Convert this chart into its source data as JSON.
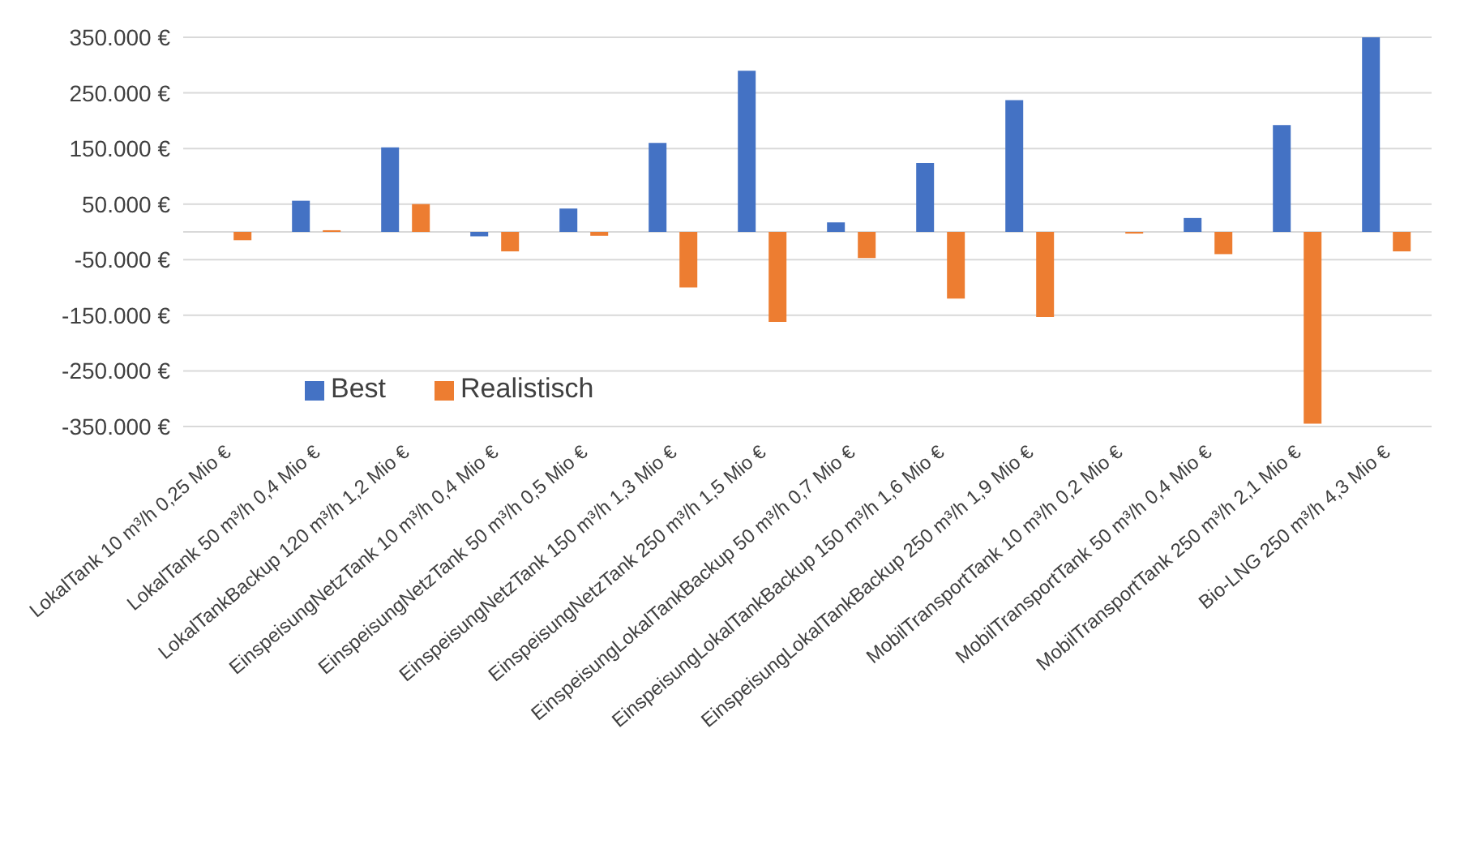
{
  "chart_data": {
    "type": "bar",
    "categories": [
      "LokalTank 10 m³/h 0,25 Mio €",
      "LokalTank 50 m³/h 0,4 Mio €",
      "LokalTankBackup 120 m³/h 1,2 Mio €",
      "EinspeisungNetzTank 10 m³/h 0,4 Mio €",
      "EinspeisungNetzTank 50 m³/h 0,5 Mio €",
      "EinspeisungNetzTank 150 m³/h 1,3 Mio €",
      "EinspeisungNetzTank 250 m³/h 1,5 Mio €",
      "EinspeisungLokalTankBackup 50 m³/h 0,7 Mio €",
      "EinspeisungLokalTankBackup 150 m³/h 1,6 Mio €",
      "EinspeisungLokalTankBackup 250 m³/h 1,9 Mio €",
      "MobilTransportTank 10 m³/h 0,2 Mio €",
      "MobilTransportTank 50 m³/h 0,4 Mio €",
      "MobilTransportTank 250 m³/h 2,1 Mio €",
      "Bio-LNG 250 m³/h 4,3 Mio €"
    ],
    "series": [
      {
        "name": "Best",
        "color": "#4472c4",
        "values": [
          0,
          56000,
          152000,
          -8000,
          42000,
          160000,
          290000,
          17000,
          124000,
          237000,
          0,
          25000,
          192000,
          350000
        ]
      },
      {
        "name": "Realistisch",
        "color": "#ed7d31",
        "values": [
          -15000,
          3000,
          50000,
          -35000,
          -7000,
          -100000,
          -162000,
          -47000,
          -120000,
          -153000,
          -3000,
          -40000,
          -345000,
          -35000
        ]
      }
    ],
    "ylim": [
      -350000,
      350000
    ],
    "yticks": [
      {
        "value": 350000,
        "label": "350.000 €"
      },
      {
        "value": 250000,
        "label": "250.000 €"
      },
      {
        "value": 150000,
        "label": "150.000 €"
      },
      {
        "value": 50000,
        "label": "50.000 €"
      },
      {
        "value": 0,
        "label": null
      },
      {
        "value": -50000,
        "label": "-50.000 €"
      },
      {
        "value": -150000,
        "label": "-150.000 €"
      },
      {
        "value": -250000,
        "label": "-250.000 €"
      },
      {
        "value": -350000,
        "label": "-350.000 €"
      }
    ],
    "grid": "y",
    "legend": "bottom left"
  }
}
